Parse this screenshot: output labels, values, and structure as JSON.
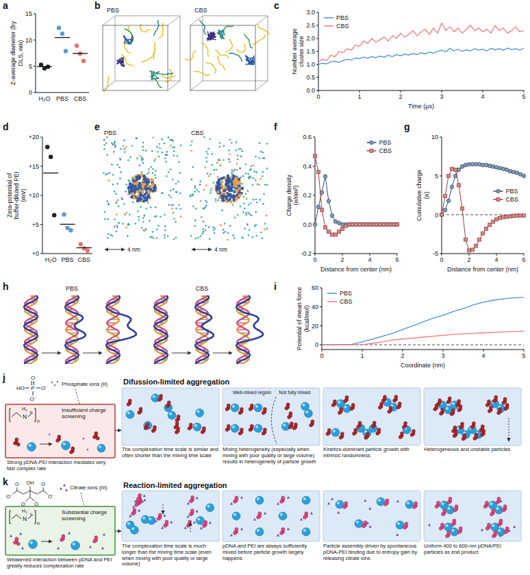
{
  "panel_labels": [
    "a",
    "b",
    "c",
    "d",
    "e",
    "f",
    "g",
    "h",
    "i",
    "j",
    "k"
  ],
  "chart_data": [
    {
      "type": "dot",
      "y_label": "Z-average diameter (by DLS, nm)",
      "categories": [
        "H₂O",
        "PBS",
        "CBS"
      ],
      "values": [
        [
          5.3,
          4.6,
          4.9
        ],
        [
          12.3,
          11.2,
          7.9
        ],
        [
          8.9,
          7.4,
          6.0
        ]
      ],
      "means": [
        4.93,
        10.47,
        7.43
      ],
      "colors": [
        "#222222",
        "#5b9bd5",
        "#e8736c"
      ],
      "ylim": [
        0,
        15
      ],
      "yticks": [
        0,
        5,
        10,
        15
      ],
      "grid": false
    },
    {
      "type": "line",
      "x_label": "Time (µs)",
      "y_label": "Number average cluster size",
      "x": [
        0,
        0.1,
        0.2,
        0.3,
        0.4,
        0.5,
        0.6,
        0.7,
        0.8,
        0.9,
        1,
        1.1,
        1.2,
        1.3,
        1.4,
        1.5,
        1.6,
        1.7,
        1.8,
        1.9,
        2,
        2.1,
        2.2,
        2.3,
        2.4,
        2.5,
        2.6,
        2.7,
        2.8,
        2.9,
        3,
        3.1,
        3.2,
        3.3,
        3.4,
        3.5,
        3.6,
        3.7,
        3.8,
        3.9,
        4,
        4.1,
        4.2,
        4.3,
        4.4,
        4.5,
        4.6,
        4.7,
        4.8,
        4.9,
        5
      ],
      "series": [
        {
          "name": "PBS",
          "color": "#4a90d9",
          "marker": "none",
          "values": [
            1.0,
            1.05,
            1.02,
            1.1,
            1.12,
            1.08,
            1.15,
            1.2,
            1.17,
            1.25,
            1.22,
            1.28,
            1.24,
            1.3,
            1.26,
            1.32,
            1.28,
            1.35,
            1.3,
            1.38,
            1.33,
            1.4,
            1.36,
            1.42,
            1.38,
            1.45,
            1.4,
            1.48,
            1.43,
            1.5,
            1.55,
            1.48,
            1.62,
            1.52,
            1.58,
            1.5,
            1.56,
            1.52,
            1.6,
            1.55,
            1.58,
            1.52,
            1.62,
            1.56,
            1.6,
            1.54,
            1.63,
            1.57,
            1.6,
            1.55,
            1.62
          ]
        },
        {
          "name": "CBS",
          "color": "#f07c7c",
          "marker": "none",
          "values": [
            1.1,
            1.2,
            1.15,
            1.35,
            1.3,
            1.5,
            1.45,
            1.6,
            1.55,
            1.75,
            1.7,
            1.9,
            1.8,
            2.0,
            1.85,
            1.95,
            2.05,
            1.9,
            2.1,
            2.0,
            2.2,
            2.05,
            2.15,
            2.3,
            2.1,
            2.25,
            2.35,
            2.15,
            2.4,
            2.2,
            2.6,
            2.3,
            2.45,
            2.25,
            2.4,
            2.2,
            2.35,
            2.5,
            2.3,
            2.4,
            2.25,
            2.35,
            2.2,
            2.5,
            2.3,
            2.4,
            2.2,
            2.3,
            2.45,
            2.25,
            2.3
          ]
        }
      ],
      "xlim": [
        0,
        5
      ],
      "xticks": [
        0,
        1,
        2,
        3,
        4,
        5
      ],
      "ylim": [
        0,
        3
      ],
      "yticks": [
        {
          "value": 0,
          "label": "0.0"
        },
        0.5,
        {
          "value": 1,
          "label": "1.0"
        },
        1.5,
        {
          "value": 2,
          "label": "2.0"
        },
        2.5,
        {
          "value": 3,
          "label": "3.0"
        }
      ],
      "grid": false,
      "legend": "upper left"
    },
    {
      "type": "dot",
      "y_label": "Zeta-potential of buffer-diluted PEI (mV)",
      "categories": [
        "H₂O",
        "PBS",
        "CBS"
      ],
      "values": [
        [
          18.3,
          16.6,
          6.6
        ],
        [
          6.7,
          4.4,
          4.0
        ],
        [
          1.6,
          0.9,
          0.5
        ]
      ],
      "means": [
        13.83,
        5.03,
        1.0
      ],
      "colors": [
        "#222222",
        "#5b9bd5",
        "#e8736c"
      ],
      "ylim": [
        0,
        20
      ],
      "yticks": [
        {
          "value": 0,
          "label": "+0"
        },
        {
          "value": 5,
          "label": "+5"
        },
        {
          "value": 10,
          "label": "+10"
        },
        {
          "value": 15,
          "label": "+15"
        },
        {
          "value": 20,
          "label": "+20"
        }
      ],
      "grid": false
    },
    {
      "type": "line",
      "x_label": "Distance from center (nm)",
      "y_label": "Charge density (e/nm³)",
      "x": [
        0,
        0.25,
        0.5,
        0.75,
        1,
        1.25,
        1.5,
        1.75,
        2,
        2.25,
        2.5,
        2.75,
        3,
        3.25,
        3.5,
        3.75,
        4,
        4.25,
        4.5,
        4.75,
        5,
        5.25,
        5.5,
        5.75,
        6
      ],
      "series": [
        {
          "name": "PBS",
          "color": "#2d4f73",
          "marker": "circle",
          "values": [
            0,
            0.12,
            0.22,
            0.33,
            0.16,
            0.06,
            0.02,
            0.01,
            0,
            0,
            0,
            0,
            0,
            0,
            0,
            0,
            0,
            0,
            0,
            0,
            0,
            0,
            0,
            0,
            0
          ]
        },
        {
          "name": "CBS",
          "color": "#a33a3a",
          "marker": "square",
          "values": [
            0.47,
            0.36,
            0.1,
            -0.02,
            -0.05,
            -0.07,
            -0.07,
            -0.05,
            -0.03,
            -0.01,
            0,
            0,
            0,
            0,
            0,
            0,
            0,
            0,
            0,
            0,
            0,
            0,
            0,
            0,
            0
          ]
        }
      ],
      "xlim": [
        0,
        6
      ],
      "xticks": [
        0,
        2,
        4,
        6
      ],
      "ylim": [
        -0.2,
        0.6
      ],
      "yticks": [
        -0.2,
        {
          "value": 0,
          "label": "0.0"
        },
        0.2,
        0.4,
        0.6
      ],
      "grid": false,
      "legend": "upper right"
    },
    {
      "type": "line",
      "x_label": "Distance from center (nm)",
      "y_label": "Cumulative charge (e)",
      "x": [
        0,
        0.25,
        0.5,
        0.75,
        1,
        1.25,
        1.5,
        1.75,
        2,
        2.25,
        2.5,
        2.75,
        3,
        3.25,
        3.5,
        3.75,
        4,
        4.25,
        4.5,
        4.75,
        5,
        5.25,
        5.5,
        5.75,
        6
      ],
      "series": [
        {
          "name": "PBS",
          "color": "#2d4f73",
          "marker": "circle",
          "values": [
            0,
            0.6,
            1.8,
            3.6,
            5.0,
            5.8,
            6.2,
            6.4,
            6.5,
            6.5,
            6.5,
            6.5,
            6.4,
            6.4,
            6.3,
            6.2,
            6.1,
            6.0,
            5.9,
            5.8,
            5.6,
            5.5,
            5.4,
            5.2,
            5.0
          ]
        },
        {
          "name": "CBS",
          "color": "#a33a3a",
          "marker": "square",
          "values": [
            0,
            2.4,
            5.0,
            5.9,
            5.8,
            3.8,
            0.8,
            -3.2,
            -4.6,
            -4.5,
            -4.0,
            -3.2,
            -2.4,
            -1.8,
            -1.3,
            -0.9,
            -0.6,
            -0.4,
            -0.3,
            -0.25,
            -0.2,
            -0.15,
            -0.1,
            -0.1,
            -0.1
          ]
        }
      ],
      "baseline": 0,
      "xlim": [
        0,
        6
      ],
      "xticks": [
        0,
        2,
        4,
        6
      ],
      "ylim": [
        -5,
        10
      ],
      "yticks": [
        -5,
        0,
        5,
        10
      ],
      "grid": false,
      "legend": "right"
    },
    {
      "type": "line",
      "x_label": "Coordinate (nm)",
      "y_label": "Potential of mean force (kcal/mol)",
      "x": [
        0,
        0.25,
        0.5,
        0.75,
        1,
        1.25,
        1.5,
        1.75,
        2,
        2.25,
        2.5,
        2.75,
        3,
        3.25,
        3.5,
        3.75,
        4,
        4.25,
        4.5,
        4.75,
        5
      ],
      "series": [
        {
          "name": "PBS",
          "color": "#4a90d9",
          "marker": "none",
          "values": [
            0,
            0,
            0,
            0.5,
            3,
            6,
            9,
            12,
            16,
            20,
            24,
            28,
            31,
            35,
            38,
            42,
            45,
            47,
            48.5,
            49.5,
            50
          ]
        },
        {
          "name": "CBS",
          "color": "#f07c7c",
          "marker": "none",
          "values": [
            0,
            0,
            0,
            0,
            0.2,
            1.5,
            3,
            5,
            6,
            7,
            8,
            9,
            10,
            11,
            11.5,
            12,
            12.5,
            13,
            13.5,
            14,
            14.2
          ]
        }
      ],
      "baseline": 0,
      "xlim": [
        0,
        5
      ],
      "xticks": [
        0,
        1,
        2,
        3,
        4,
        5
      ],
      "ylim": [
        -5,
        60
      ],
      "yticks": [
        0,
        20,
        40,
        60
      ],
      "grid": false,
      "legend": "upper left"
    }
  ],
  "diagrams": {
    "b": {
      "labels": [
        "PBS",
        "CBS"
      ]
    },
    "e": {
      "labels": [
        "PBS",
        "CBS"
      ],
      "scale_bars": [
        "4 nm",
        "4 nm"
      ]
    },
    "h": {
      "labels": [
        "PBS",
        "CBS"
      ]
    },
    "j": {
      "phosphate": [
        "O",
        "HO",
        "P",
        "O⁻",
        "O⁻"
      ],
      "ion_label": "Phosphate ions (II)",
      "pei": [
        "H₂",
        "N",
        "+",
        "n"
      ],
      "screening": "Insufficient charge screening",
      "title": "Difussion-limited aggregation",
      "mixing_labels": [
        "Well-mixed region",
        "Not fully mixed"
      ],
      "captions": [
        "Strong pDNA-PEI interaction mediates very fast complex rate",
        "The complexation time scale is similar and often shorter than the mixing time scale",
        "Mixing heterogeneity (especially when mixing with poor quality or large volume) results in heterogeneity of particle growth",
        "Kinetics-dominant particle growth with intrinsic randomness",
        "Heterogeneous and unstable particles"
      ]
    },
    "k": {
      "citrate": [
        "OH",
        "O",
        "O⁻",
        "O",
        "O⁻",
        "O⁻",
        "O"
      ],
      "ion_label": "Citrate ions (III)",
      "pei": [
        "H₂",
        "N",
        "+",
        "n"
      ],
      "screening": "Substantial charge screening",
      "title": "Reaction-limited aggregation",
      "captions": [
        "Weakened interaction between pDNA and PEI greatly reduces complexation rate",
        "The complexation time scale is much longer than the mixing time scale (even when mixing with poor quality or large volume)",
        "pDNA and PEI are always sufficiently mixed before particle growth largely happens",
        "Particle assembly driven by spontaneous pDNA-PEI binding due to entropy gain by releasing citrate ions",
        "Uniform 400 to 600-nm pDNA/PEI particles as end product"
      ]
    }
  }
}
